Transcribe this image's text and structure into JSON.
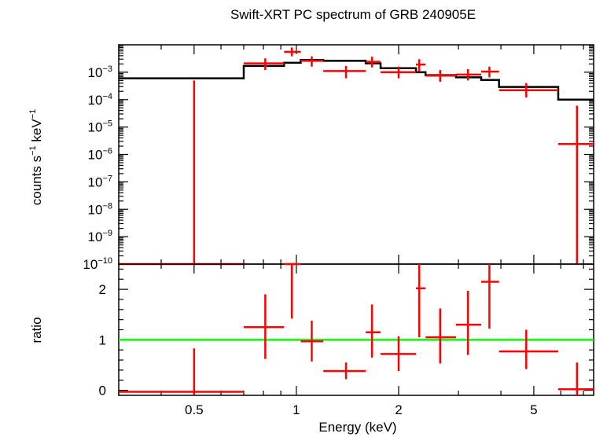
{
  "chart_data": [
    {
      "type": "scatter",
      "title": "Swift-XRT PC spectrum of GRB 240905E",
      "ylabel_parts": [
        "counts s",
        "−1",
        " keV",
        "−1"
      ],
      "xscale": "log",
      "yscale": "log",
      "xlim": [
        0.3,
        7.5
      ],
      "ylim": [
        1e-10,
        0.01
      ],
      "yticks": [
        {
          "value": 1e-10,
          "base": "10",
          "exp": "−10"
        },
        {
          "value": 1e-09,
          "base": "10",
          "exp": "−9"
        },
        {
          "value": 1e-08,
          "base": "10",
          "exp": "−8"
        },
        {
          "value": 1e-07,
          "base": "10",
          "exp": "−7"
        },
        {
          "value": 1e-06,
          "base": "10",
          "exp": "−6"
        },
        {
          "value": 1e-05,
          "base": "10",
          "exp": "−5"
        },
        {
          "value": 0.0001,
          "base": "10",
          "exp": "−4"
        },
        {
          "value": 0.001,
          "base": "10",
          "exp": "−3"
        }
      ],
      "data_series": {
        "name": "data",
        "color": "#ff0000",
        "points": [
          {
            "x": 0.5,
            "xlo": 0.3,
            "xhi": 0.7,
            "y": 1e-10,
            "ylo": 1e-10,
            "yhi": 0.0005
          },
          {
            "x": 0.81,
            "xlo": 0.7,
            "xhi": 0.92,
            "y": 0.0021,
            "ylo": 0.0012,
            "yhi": 0.0032
          },
          {
            "x": 0.97,
            "xlo": 0.92,
            "xhi": 1.03,
            "y": 0.0055,
            "ylo": 0.0038,
            "yhi": 0.008
          },
          {
            "x": 1.11,
            "xlo": 1.03,
            "xhi": 1.2,
            "y": 0.0026,
            "ylo": 0.0016,
            "yhi": 0.0038
          },
          {
            "x": 1.4,
            "xlo": 1.2,
            "xhi": 1.6,
            "y": 0.0011,
            "ylo": 0.0006,
            "yhi": 0.0017
          },
          {
            "x": 1.67,
            "xlo": 1.6,
            "xhi": 1.77,
            "y": 0.0024,
            "ylo": 0.0015,
            "yhi": 0.0037
          },
          {
            "x": 2.0,
            "xlo": 1.77,
            "xhi": 2.25,
            "y": 0.001,
            "ylo": 0.0006,
            "yhi": 0.0016
          },
          {
            "x": 2.3,
            "xlo": 2.25,
            "xhi": 2.4,
            "y": 0.0019,
            "ylo": 0.0011,
            "yhi": 0.003
          },
          {
            "x": 2.65,
            "xlo": 2.4,
            "xhi": 2.95,
            "y": 0.00075,
            "ylo": 0.00045,
            "yhi": 0.0012
          },
          {
            "x": 3.2,
            "xlo": 2.95,
            "xhi": 3.5,
            "y": 0.00082,
            "ylo": 0.0005,
            "yhi": 0.0013
          },
          {
            "x": 3.7,
            "xlo": 3.5,
            "xhi": 3.95,
            "y": 0.00105,
            "ylo": 0.00065,
            "yhi": 0.0016
          },
          {
            "x": 4.75,
            "xlo": 3.95,
            "xhi": 5.9,
            "y": 0.00022,
            "ylo": 0.00012,
            "yhi": 0.0004
          },
          {
            "x": 6.7,
            "xlo": 5.9,
            "xhi": 7.5,
            "y": 2.4e-06,
            "ylo": 1e-10,
            "yhi": 6e-05
          }
        ]
      },
      "model_series": {
        "name": "model",
        "color": "#000000",
        "steps": [
          {
            "xlo": 0.3,
            "xhi": 0.7,
            "y": 0.0006
          },
          {
            "xlo": 0.7,
            "xhi": 0.92,
            "y": 0.0017
          },
          {
            "xlo": 0.92,
            "xhi": 1.03,
            "y": 0.0022
          },
          {
            "xlo": 1.03,
            "xhi": 1.2,
            "y": 0.0028
          },
          {
            "xlo": 1.2,
            "xhi": 1.6,
            "y": 0.0026
          },
          {
            "xlo": 1.6,
            "xhi": 1.77,
            "y": 0.0021
          },
          {
            "xlo": 1.77,
            "xhi": 2.25,
            "y": 0.0014
          },
          {
            "xlo": 2.25,
            "xhi": 2.4,
            "y": 0.001
          },
          {
            "xlo": 2.4,
            "xhi": 2.95,
            "y": 0.00078
          },
          {
            "xlo": 2.95,
            "xhi": 3.5,
            "y": 0.00065
          },
          {
            "xlo": 3.5,
            "xhi": 3.95,
            "y": 0.00052
          },
          {
            "xlo": 3.95,
            "xhi": 5.9,
            "y": 0.00029
          },
          {
            "xlo": 5.9,
            "xhi": 7.5,
            "y": 0.0001
          }
        ]
      }
    },
    {
      "type": "scatter",
      "xlabel": "Energy (keV)",
      "ylabel": "ratio",
      "xscale": "log",
      "yscale": "linear",
      "xlim": [
        0.3,
        7.5
      ],
      "ylim": [
        -0.1,
        2.5
      ],
      "yticks": [
        "0",
        "1",
        "2"
      ],
      "xticks": [
        "0.5",
        "1",
        "2",
        "5"
      ],
      "reference_line": {
        "y": 1,
        "color": "#00ff00"
      },
      "data_series": {
        "name": "ratio",
        "color": "#ff0000",
        "points": [
          {
            "x": 0.5,
            "xlo": 0.3,
            "xhi": 0.7,
            "y": -0.03,
            "ylo": -0.1,
            "yhi": 0.83
          },
          {
            "x": 0.81,
            "xlo": 0.7,
            "xhi": 0.92,
            "y": 1.25,
            "ylo": 0.62,
            "yhi": 1.9
          },
          {
            "x": 0.97,
            "xlo": 0.92,
            "xhi": 1.03,
            "y": 2.5,
            "ylo": 1.42,
            "yhi": 2.5
          },
          {
            "x": 1.11,
            "xlo": 1.03,
            "xhi": 1.2,
            "y": 0.97,
            "ylo": 0.57,
            "yhi": 1.38
          },
          {
            "x": 1.4,
            "xlo": 1.2,
            "xhi": 1.6,
            "y": 0.38,
            "ylo": 0.22,
            "yhi": 0.55
          },
          {
            "x": 1.67,
            "xlo": 1.6,
            "xhi": 1.77,
            "y": 1.15,
            "ylo": 0.65,
            "yhi": 1.7
          },
          {
            "x": 2.0,
            "xlo": 1.77,
            "xhi": 2.25,
            "y": 0.72,
            "ylo": 0.38,
            "yhi": 1.07
          },
          {
            "x": 2.3,
            "xlo": 2.25,
            "xhi": 2.4,
            "y": 2.02,
            "ylo": 1.05,
            "yhi": 2.5
          },
          {
            "x": 2.65,
            "xlo": 2.4,
            "xhi": 2.95,
            "y": 1.05,
            "ylo": 0.53,
            "yhi": 1.62
          },
          {
            "x": 3.2,
            "xlo": 2.95,
            "xhi": 3.5,
            "y": 1.3,
            "ylo": 0.7,
            "yhi": 1.97
          },
          {
            "x": 3.7,
            "xlo": 3.5,
            "xhi": 3.95,
            "y": 2.15,
            "ylo": 1.22,
            "yhi": 2.5
          },
          {
            "x": 4.75,
            "xlo": 3.95,
            "xhi": 5.9,
            "y": 0.77,
            "ylo": 0.42,
            "yhi": 1.2
          },
          {
            "x": 6.7,
            "xlo": 5.9,
            "xhi": 7.5,
            "y": 0.02,
            "ylo": -0.1,
            "yhi": 0.55
          }
        ]
      }
    }
  ]
}
